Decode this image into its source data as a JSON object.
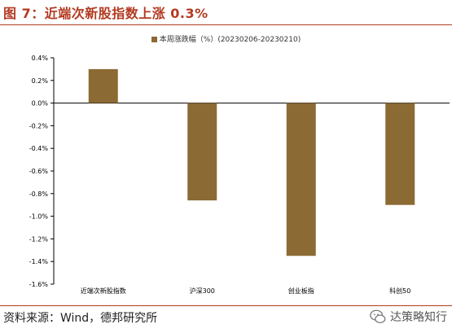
{
  "figure": {
    "title": "图 7：近端次新股指数上涨 0.3%",
    "source": "资料来源：Wind，德邦研究所",
    "watermark": "达策略知行",
    "title_color": "#b33a21"
  },
  "chart_data": {
    "type": "bar",
    "categories": [
      "近端次新股指数",
      "沪深300",
      "创业板指",
      "科创50"
    ],
    "series": [
      {
        "name": "本周涨跌幅（%）(20230206-20230210)",
        "values": [
          0.3,
          -0.86,
          -1.35,
          -0.9
        ],
        "color": "#8c6a33"
      }
    ],
    "ylim": [
      -1.6,
      0.4
    ],
    "yticks": [
      0.4,
      0.2,
      0.0,
      -0.2,
      -0.4,
      -0.6,
      -0.8,
      -1.0,
      -1.2,
      -1.4,
      -1.6
    ],
    "ytick_labels": [
      "0.4%",
      "0.2%",
      "0.0%",
      "-0.2%",
      "-0.4%",
      "-0.6%",
      "-0.8%",
      "-1.0%",
      "-1.2%",
      "-1.4%",
      "-1.6%"
    ],
    "legend_position": "top-center",
    "grid": false
  }
}
